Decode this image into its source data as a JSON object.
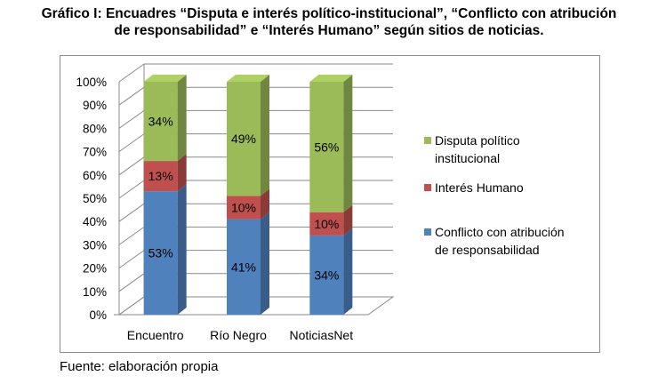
{
  "title": {
    "line1": "Gráfico I: Encuadres “Disputa e interés político-institucional”, “Conflicto con atribución",
    "line2": "de responsabilidad” e “Interés Humano” según sitios de noticias."
  },
  "source": "Fuente: elaboración propia",
  "chart_data": {
    "type": "bar",
    "stacked": true,
    "three_d": true,
    "categories": [
      "Encuentro",
      "Río Negro",
      "NoticiasNet"
    ],
    "series": [
      {
        "name": "Conflicto con atribución de responsabilidad",
        "values": [
          53,
          41,
          34
        ],
        "labels": [
          "53%",
          "41%",
          "34%"
        ],
        "color": "#4F81BD"
      },
      {
        "name": "Interés Humano",
        "values": [
          13,
          10,
          10
        ],
        "labels": [
          "13%",
          "10%",
          "10%"
        ],
        "color": "#C0504D"
      },
      {
        "name": "Disputa político institucional",
        "values": [
          34,
          49,
          56
        ],
        "labels": [
          "34%",
          "49%",
          "56%"
        ],
        "color": "#9BBB59"
      }
    ],
    "y_ticks": [
      "0%",
      "10%",
      "20%",
      "30%",
      "40%",
      "50%",
      "60%",
      "70%",
      "80%",
      "90%",
      "100%"
    ],
    "ylim": [
      0,
      100
    ],
    "grid": true,
    "legend_position": "right",
    "legend": [
      {
        "lines": [
          "Disputa político",
          "institucional"
        ],
        "color": "#9BBB59"
      },
      {
        "lines": [
          "Interés Humano"
        ],
        "color": "#C0504D"
      },
      {
        "lines": [
          "Conflicto con atribución",
          "de responsabilidad"
        ],
        "color": "#4F81BD"
      }
    ]
  }
}
